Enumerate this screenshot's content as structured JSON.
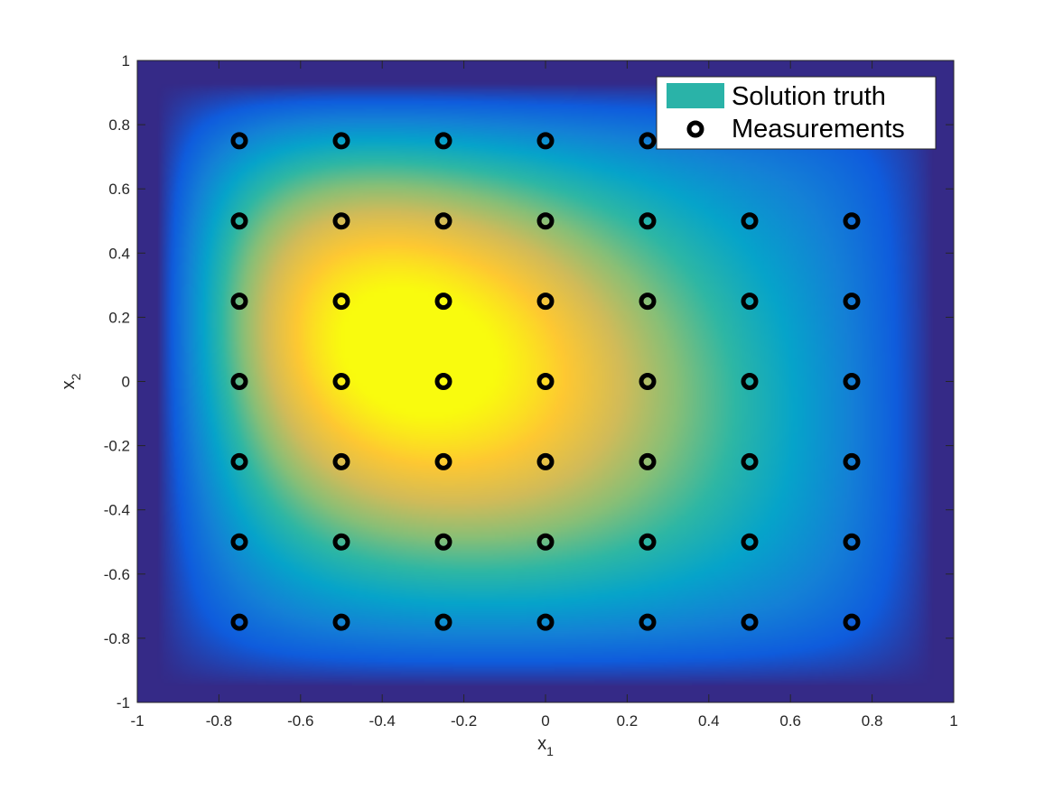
{
  "chart_data": {
    "type": "heatmap",
    "title": "",
    "xlabel": {
      "base": "x",
      "sub": "1"
    },
    "ylabel": {
      "base": "x",
      "sub": "2"
    },
    "xlim": [
      -1,
      1
    ],
    "ylim": [
      -1,
      1
    ],
    "xticks": [
      "-1",
      "-0.8",
      "-0.6",
      "-0.4",
      "-0.2",
      "0",
      "0.2",
      "0.4",
      "0.6",
      "0.8",
      "1"
    ],
    "yticks": [
      "-1",
      "-0.8",
      "-0.6",
      "-0.4",
      "-0.2",
      "0",
      "0.2",
      "0.4",
      "0.6",
      "0.8",
      "1"
    ],
    "grid": false,
    "colormap": [
      "#352a87",
      "#0f5cdd",
      "#1481d6",
      "#06a4ca",
      "#2eb7a4",
      "#87bf77",
      "#d1bb59",
      "#fec832",
      "#f9fb0e"
    ],
    "surface": {
      "name": "Solution truth",
      "peak": [
        -0.35,
        0.1
      ],
      "support": {
        "x": [
          -0.95,
          0.95
        ],
        "y": [
          -0.95,
          0.93
        ]
      },
      "note_color": "#2ab3a8"
    },
    "series": [
      {
        "name": "Measurements",
        "marker": "o",
        "color": "#000000",
        "x": [
          -0.75,
          -0.5,
          -0.25,
          0,
          0.25,
          0.5,
          0.75
        ],
        "y": [
          -0.75,
          -0.5,
          -0.25,
          0,
          0.25,
          0.5,
          0.75
        ]
      }
    ],
    "legend": {
      "position": "top-right",
      "entries": [
        {
          "label": "Solution truth",
          "color": "#2ab3a8",
          "kind": "patch"
        },
        {
          "label": "Measurements",
          "color": "#000000",
          "kind": "marker"
        }
      ]
    }
  }
}
